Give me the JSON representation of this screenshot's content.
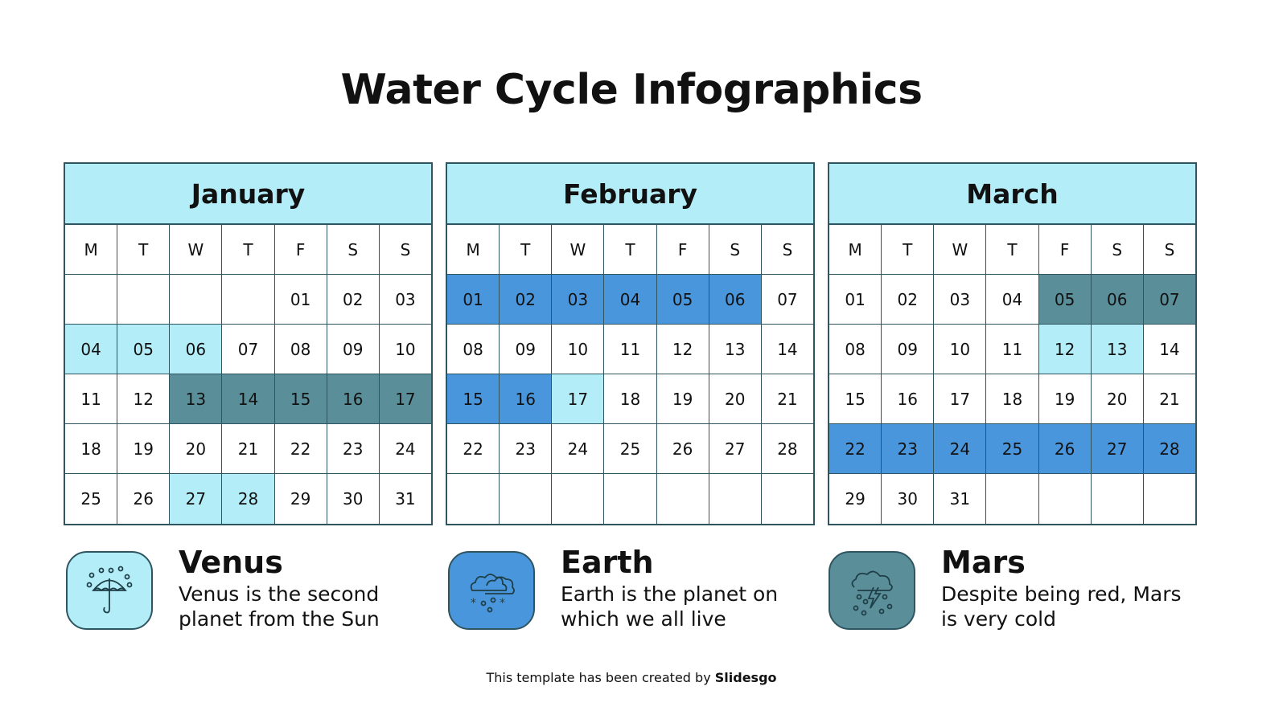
{
  "title": "Water Cycle Infographics",
  "colors": {
    "light": "#b3eef8",
    "blue": "#4a96dc",
    "teal": "#5a8f9a",
    "border": "#2f5560"
  },
  "weekdays": [
    "M",
    "T",
    "W",
    "T",
    "F",
    "S",
    "S"
  ],
  "months": [
    {
      "name": "January",
      "weeks": [
        [
          "",
          "",
          "",
          "",
          "01",
          "02",
          "03"
        ],
        [
          "04",
          "05",
          "06",
          "07",
          "08",
          "09",
          "10"
        ],
        [
          "11",
          "12",
          "13",
          "14",
          "15",
          "16",
          "17"
        ],
        [
          "18",
          "19",
          "20",
          "21",
          "22",
          "23",
          "24"
        ],
        [
          "25",
          "26",
          "27",
          "28",
          "29",
          "30",
          "31"
        ]
      ],
      "highlights": {
        "light": [
          "04",
          "05",
          "06",
          "27",
          "28"
        ],
        "teal": [
          "13",
          "14",
          "15",
          "16",
          "17"
        ],
        "blue": []
      }
    },
    {
      "name": "February",
      "weeks": [
        [
          "01",
          "02",
          "03",
          "04",
          "05",
          "06",
          "07"
        ],
        [
          "08",
          "09",
          "10",
          "11",
          "12",
          "13",
          "14"
        ],
        [
          "15",
          "16",
          "17",
          "18",
          "19",
          "20",
          "21"
        ],
        [
          "22",
          "23",
          "24",
          "25",
          "26",
          "27",
          "28"
        ],
        [
          "",
          "",
          "",
          "",
          "",
          "",
          ""
        ]
      ],
      "highlights": {
        "light": [
          "17"
        ],
        "teal": [],
        "blue": [
          "01",
          "02",
          "03",
          "04",
          "05",
          "06",
          "15",
          "16"
        ]
      }
    },
    {
      "name": "March",
      "weeks": [
        [
          "01",
          "02",
          "03",
          "04",
          "05",
          "06",
          "07"
        ],
        [
          "08",
          "09",
          "10",
          "11",
          "12",
          "13",
          "14"
        ],
        [
          "15",
          "16",
          "17",
          "18",
          "19",
          "20",
          "21"
        ],
        [
          "22",
          "23",
          "24",
          "25",
          "26",
          "27",
          "28"
        ],
        [
          "29",
          "30",
          "31",
          "",
          "",
          "",
          ""
        ]
      ],
      "highlights": {
        "light": [
          "12",
          "13"
        ],
        "teal": [
          "05",
          "06",
          "07"
        ],
        "blue": [
          "22",
          "23",
          "24",
          "25",
          "26",
          "27",
          "28"
        ]
      }
    }
  ],
  "legend": [
    {
      "title": "Venus",
      "desc": "Venus is the second planet from the Sun",
      "color": "light",
      "icon": "umbrella-rain-icon"
    },
    {
      "title": "Earth",
      "desc": "Earth is the planet on which we all live",
      "color": "blue",
      "icon": "cloud-snow-icon"
    },
    {
      "title": "Mars",
      "desc": "Despite being red, Mars is very cold",
      "color": "teal",
      "icon": "storm-icon"
    }
  ],
  "footer": {
    "text": "This template has been created by ",
    "brand": "Slidesgo"
  }
}
